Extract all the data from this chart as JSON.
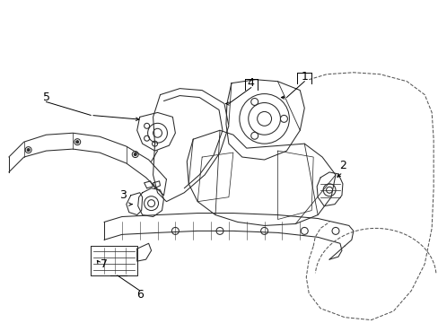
{
  "background_color": "#ffffff",
  "line_color": "#2a2a2a",
  "dashed_color": "#444444",
  "label_color": "#000000",
  "label_fontsize": 9,
  "lw": 0.75
}
